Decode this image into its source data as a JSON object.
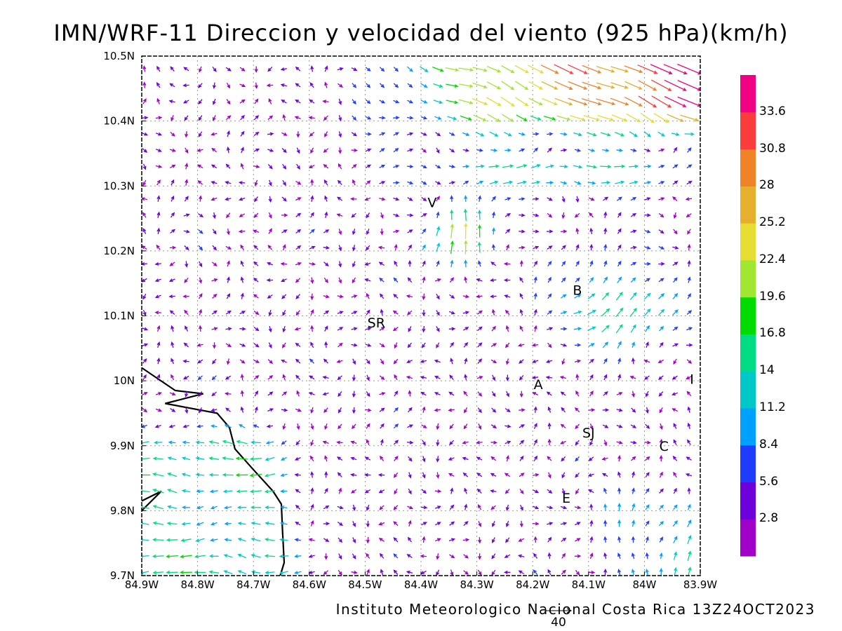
{
  "title": "IMN/WRF-11 Direccion y velocidad del viento (925 hPa)(km/h)",
  "credit": "Instituto Meteorologico Nacional Costa Rica 13Z24OCT2023",
  "reference_vector": {
    "value": "40"
  },
  "map": {
    "projection": "lat-lon",
    "lon_range": [
      -84.9,
      -83.9
    ],
    "lat_range": [
      9.7,
      10.5
    ],
    "grid": true,
    "x_ticks": [
      "84.9W",
      "84.8W",
      "84.7W",
      "84.6W",
      "84.5W",
      "84.4W",
      "84.3W",
      "84.2W",
      "84.1W",
      "84W",
      "83.9W"
    ],
    "y_ticks": [
      "9.7N",
      "9.8N",
      "9.9N",
      "10N",
      "10.1N",
      "10.2N",
      "10.3N",
      "10.4N",
      "10.5N"
    ],
    "coastline": [
      [
        -84.9,
        10.02
      ],
      [
        -84.84,
        9.985
      ],
      [
        -84.79,
        9.98
      ],
      [
        -84.858,
        9.965
      ],
      [
        -84.765,
        9.95
      ],
      [
        -84.743,
        9.928
      ],
      [
        -84.733,
        9.895
      ],
      [
        -84.702,
        9.865
      ],
      [
        -84.665,
        9.83
      ],
      [
        -84.65,
        9.81
      ],
      [
        -84.648,
        9.77
      ],
      [
        -84.645,
        9.72
      ],
      [
        -84.652,
        9.7
      ]
    ],
    "coastline_fragment": [
      [
        -84.9,
        9.8
      ],
      [
        -84.865,
        9.83
      ],
      [
        -84.9,
        9.815
      ]
    ],
    "places": [
      {
        "label": "V",
        "lon": -84.38,
        "lat": 10.275
      },
      {
        "label": "B",
        "lon": -84.12,
        "lat": 10.14
      },
      {
        "label": "SR",
        "lon": -84.48,
        "lat": 10.09
      },
      {
        "label": "A",
        "lon": -84.19,
        "lat": 9.995
      },
      {
        "label": "I",
        "lon": -83.915,
        "lat": 10.003
      },
      {
        "label": "SJ",
        "lon": -84.1,
        "lat": 9.92
      },
      {
        "label": "C",
        "lon": -83.965,
        "lat": 9.9
      },
      {
        "label": "E",
        "lon": -84.14,
        "lat": 9.82
      }
    ]
  },
  "colorbar": {
    "labels": [
      "2.8",
      "5.6",
      "8.4",
      "11.2",
      "14",
      "16.8",
      "19.6",
      "22.4",
      "25.2",
      "28",
      "30.8",
      "33.6"
    ],
    "colors": [
      "#a000c8",
      "#6e00dc",
      "#1e3cff",
      "#00a0ff",
      "#00c8c8",
      "#00dc82",
      "#00dc00",
      "#a0e632",
      "#e6dc32",
      "#e6af2d",
      "#f08228",
      "#fa3c3c",
      "#f00082"
    ]
  },
  "chart_data": {
    "type": "vector-field",
    "variable": "Direccion y velocidad del viento (925 hPa)",
    "units": "km/h",
    "level_thresholds": [
      2.8,
      5.6,
      8.4,
      11.2,
      14,
      16.8,
      19.6,
      22.4,
      25.2,
      28,
      30.8,
      33.6
    ],
    "regimes": [
      {
        "region": "northeast, lat >= 10.38",
        "flow_toward": "ESE",
        "speed_range": [
          22,
          36
        ]
      },
      {
        "region": "central north, 10.3-10.38N",
        "flow_toward": "E",
        "speed_range": [
          12,
          25
        ]
      },
      {
        "region": "near V, 10.2-10.3N, 84.4W-84.2W",
        "flow_toward": "N",
        "speed_range": [
          14,
          25
        ]
      },
      {
        "region": "east, 10.05-10.2N, 84.2W-83.95W",
        "flow_toward": "NE",
        "speed_range": [
          14,
          24
        ]
      },
      {
        "region": "west coast, south of 9.95N, west of 84.6W",
        "flow_toward": "W",
        "speed_range": [
          10,
          15
        ]
      },
      {
        "region": "southeast, south of 9.85N, east of 84.1W",
        "flow_toward": "N",
        "speed_range": [
          8,
          13
        ]
      },
      {
        "region": "interior",
        "flow_toward": "variable",
        "speed_range": [
          1,
          6
        ]
      }
    ]
  }
}
